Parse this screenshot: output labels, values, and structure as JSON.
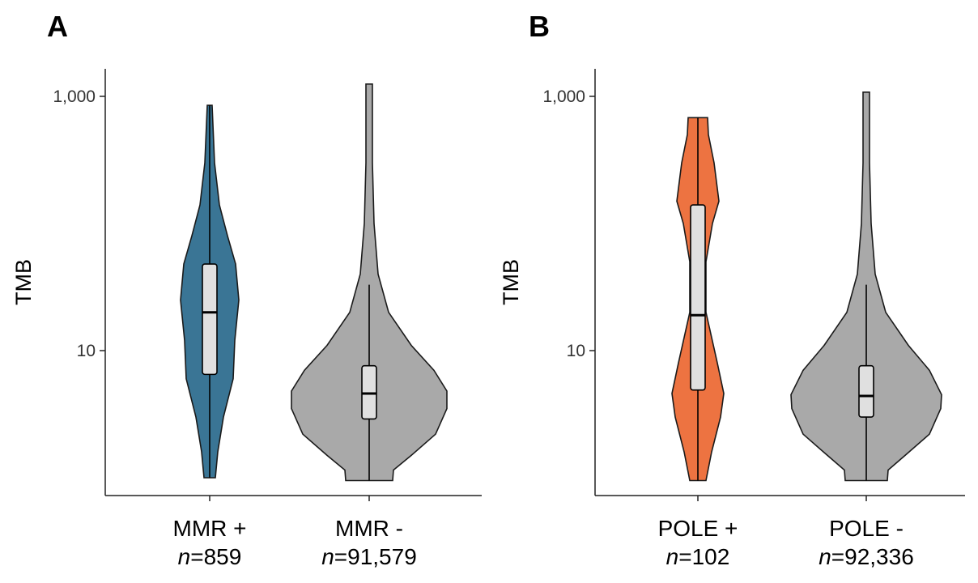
{
  "chart_data": [
    {
      "type": "violin",
      "panel": "A",
      "ylabel": "TMB",
      "yscale": "log",
      "ylim": [
        0.87,
        1700
      ],
      "yticks": [
        10,
        1000
      ],
      "ytick_labels": [
        "10",
        "1,000"
      ],
      "series": [
        {
          "category": "MMR +",
          "n_text": "=859",
          "color": "#3a7595",
          "median": 20,
          "q1": 6.5,
          "q3": 48,
          "whisker_low": 1.0,
          "whisker_high": 850,
          "min": 1.0,
          "max": 850
        },
        {
          "category": "MMR -",
          "n_text": "=91,579",
          "color": "#a9a9a9",
          "median": 4.6,
          "q1": 2.9,
          "q3": 7.6,
          "whisker_low": 0.95,
          "whisker_high": 33,
          "min": 0.95,
          "max": 1250
        }
      ]
    },
    {
      "type": "violin",
      "panel": "B",
      "ylabel": "TMB",
      "yscale": "log",
      "ylim": [
        0.87,
        1700
      ],
      "yticks": [
        10,
        1000
      ],
      "ytick_labels": [
        "10",
        "1,000"
      ],
      "series": [
        {
          "category": "POLE +",
          "n_text": "=102",
          "color": "#ed7341",
          "median": 19,
          "q1": 4.9,
          "q3": 140,
          "whisker_low": 0.95,
          "whisker_high": 680,
          "min": 0.95,
          "max": 680
        },
        {
          "category": "POLE -",
          "n_text": "=92,336",
          "color": "#a9a9a9",
          "median": 4.4,
          "q1": 3.0,
          "q3": 7.6,
          "whisker_low": 0.95,
          "whisker_high": 33,
          "min": 0.95,
          "max": 1080
        }
      ]
    }
  ]
}
